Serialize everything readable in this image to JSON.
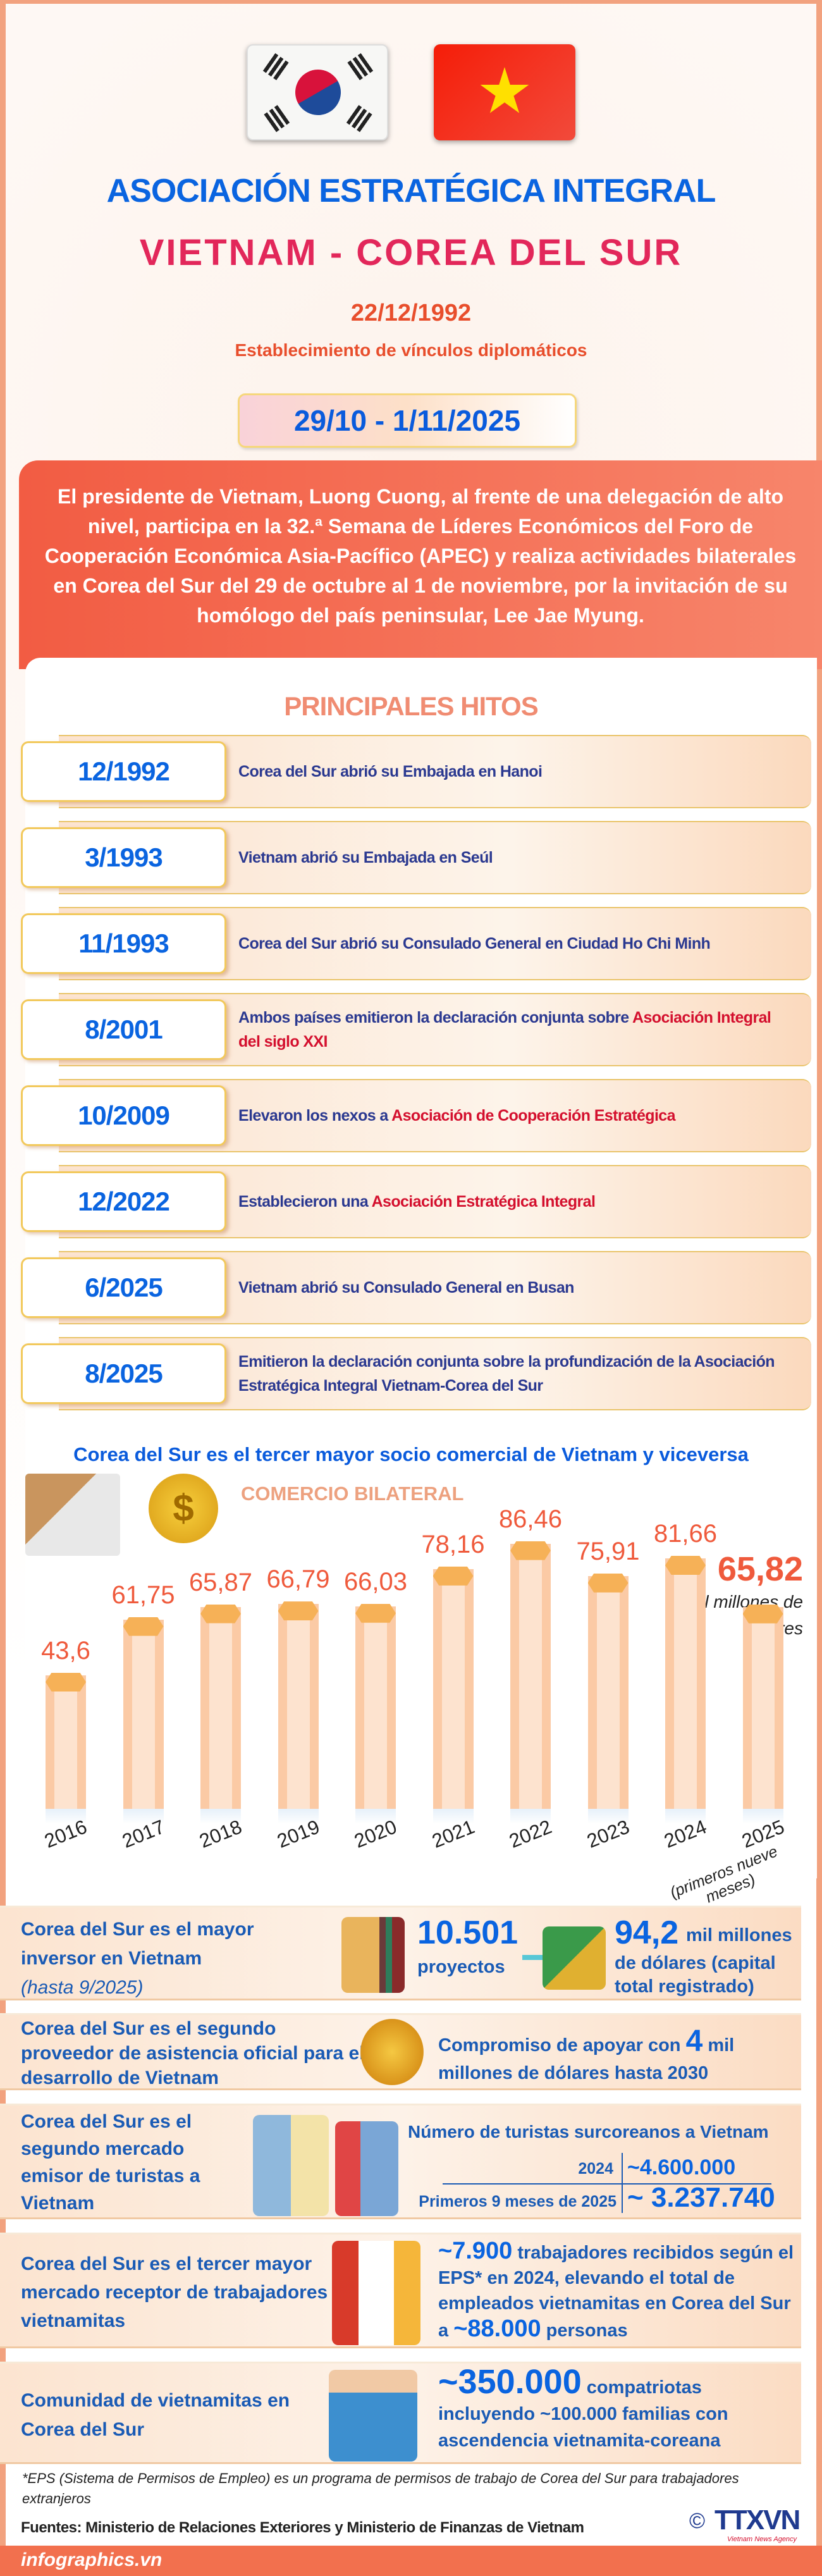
{
  "header": {
    "title1": "ASOCIACIÓN ESTRATÉGICA INTEGRAL",
    "title2": "VIETNAM - COREA DEL SUR",
    "est_date": "22/12/1992",
    "est_label": "Establecimiento de vínculos diplomáticos",
    "visit_dates": "29/10 - 1/11/2025"
  },
  "intro": "El presidente de Vietnam, Luong Cuong, al frente de una delegación de alto nivel, participa en la 32.ª Semana de Líderes Económicos del Foro de Cooperación Económica Asia-Pacífico (APEC) y realiza actividades bilaterales en Corea del Sur del 29 de octubre al 1 de noviembre, por la invitación de su homólogo del país peninsular, Lee Jae Myung.",
  "milestones": {
    "title": "PRINCIPALES HITOS",
    "items": [
      {
        "date": "12/1992",
        "pre": "Corea del Sur abrió su Embajada en Hanoi",
        "hl": "",
        "post": ""
      },
      {
        "date": "3/1993",
        "pre": "Vietnam abrió su Embajada en Seúl",
        "hl": "",
        "post": ""
      },
      {
        "date": "11/1993",
        "pre": "Corea del Sur abrió su Consulado General en Ciudad Ho Chi Minh",
        "hl": "",
        "post": ""
      },
      {
        "date": "8/2001",
        "pre": "Ambos países emitieron la declaración conjunta sobre ",
        "hl": "Asociación Integral del siglo XXI",
        "post": ""
      },
      {
        "date": "10/2009",
        "pre": "Elevaron los nexos a ",
        "hl": "Asociación de Cooperación Estratégica",
        "post": ""
      },
      {
        "date": "12/2022",
        "pre": "Establecieron una ",
        "hl": "Asociación Estratégica Integral",
        "post": ""
      },
      {
        "date": "6/2025",
        "pre": "Vietnam abrió su Consulado General en Busan",
        "hl": "",
        "post": ""
      },
      {
        "date": "8/2025",
        "pre": "Emitieron la declaración conjunta sobre la profundización de la Asociación Estratégica Integral Vietnam-Corea del Sur",
        "hl": "",
        "post": ""
      }
    ]
  },
  "trade": {
    "heading": "Corea del Sur es el tercer mayor socio comercial de Vietnam y viceversa",
    "subtitle": "COMERCIO BILATERAL",
    "last_value": "65,82",
    "unit": "mil millones de dólares",
    "note_2025": "(primeros nueve meses)"
  },
  "chart_data": {
    "type": "bar",
    "title": "COMERCIO BILATERAL",
    "categories": [
      "2016",
      "2017",
      "2018",
      "2019",
      "2020",
      "2021",
      "2022",
      "2023",
      "2024",
      "2025"
    ],
    "values": [
      43.6,
      61.75,
      65.87,
      66.79,
      66.03,
      78.16,
      86.46,
      75.91,
      81.66,
      65.82
    ],
    "labels": [
      "43,6",
      "61,75",
      "65,87",
      "66,79",
      "66,03",
      "78,16",
      "86,46",
      "75,91",
      "81,66",
      "65,82"
    ],
    "unit": "mil millones de dólares",
    "grid": false
  },
  "facts": {
    "investor": {
      "title": "Corea del Sur es el mayor inversor en Vietnam",
      "note": "(hasta 9/2025)",
      "projects_value": "10.501",
      "projects_label": "proyectos",
      "capital_value": "94,2",
      "capital_unit": "mil millones",
      "capital_label": "de dólares (capital total registrado)"
    },
    "oda": {
      "title": "Corea del Sur es el segundo proveedor de asistencia oficial para el desarrollo de Vietnam",
      "pre": "Compromiso de apoyar con ",
      "value": "4",
      "post": " mil millones de dólares hasta 2030"
    },
    "tourism": {
      "title": "Corea del Sur es el segundo mercado emisor de turistas a Vietnam",
      "table_title": "Número de turistas surcoreanos a Vietnam",
      "rows": [
        {
          "period": "2024",
          "value": "~4.600.000"
        },
        {
          "period": "Primeros 9 meses de 2025",
          "value": "~ 3.237.740"
        }
      ]
    },
    "workers": {
      "title": "Corea del Sur es el tercer mayor mercado receptor de trabajadores vietnamitas",
      "value1": "~7.900",
      "text1": " trabajadores recibidos según el EPS* en 2024, elevando el total de empleados vietnamitas en Corea del Sur a ",
      "value2": "~88.000",
      "text2": " personas"
    },
    "community": {
      "title": "Comunidad de vietnamitas en Corea del Sur",
      "value": "~350.000",
      "text": " compatriotas incluyendo ~100.000 familias con ascendencia vietnamita-coreana"
    }
  },
  "footnote": "*EPS (Sistema de Permisos de Empleo) es un programa de permisos de trabajo de Corea del Sur para trabajadores extranjeros",
  "sources": "Fuentes: Ministerio de Relaciones Exteriores y Ministerio de Finanzas de Vietnam",
  "brand": {
    "copyright": "©",
    "logo": "TTXVN",
    "logo_sub": "Vietnam News Agency",
    "site": "infographics.vn"
  },
  "colors": {
    "frame": "#f2a27f",
    "blue": "#0a5bdc",
    "title_red": "#e2275a",
    "navy": "#2b3990",
    "highlight": "#d4102e",
    "bar_value": "#ef5a3c"
  }
}
